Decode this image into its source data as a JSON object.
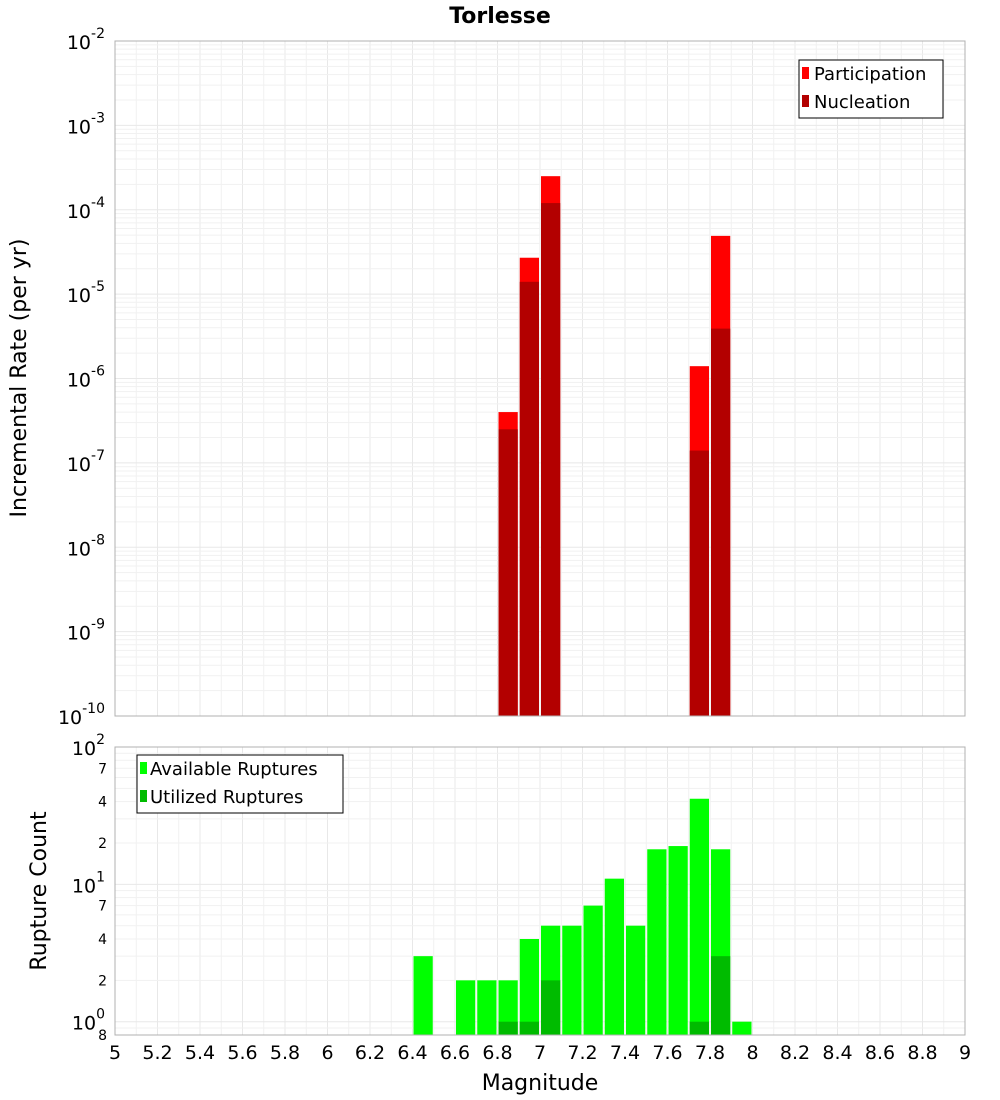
{
  "chart_data": [
    {
      "type": "bar",
      "title": "Torlesse",
      "ylabel": "Incremental Rate (per yr)",
      "xlabel": "",
      "yscale": "log",
      "ylim": [
        1e-10,
        0.01
      ],
      "xlim": [
        5,
        9
      ],
      "x": [
        6.85,
        6.95,
        7.05,
        7.75,
        7.85
      ],
      "series": [
        {
          "name": "Participation",
          "color": "#ff0000",
          "values": [
            4e-07,
            2.7e-05,
            0.00025,
            1.4e-06,
            4.9e-05
          ]
        },
        {
          "name": "Nucleation",
          "color": "#b30000",
          "values": [
            2.5e-07,
            1.4e-05,
            0.00012,
            1.4e-07,
            3.9e-06
          ]
        }
      ],
      "y_ticks": [
        {
          "base": "10",
          "exp": "-2",
          "value": 0.01
        },
        {
          "base": "10",
          "exp": "-3",
          "value": 0.001
        },
        {
          "base": "10",
          "exp": "-4",
          "value": 0.0001
        },
        {
          "base": "10",
          "exp": "-5",
          "value": 1e-05
        },
        {
          "base": "10",
          "exp": "-6",
          "value": 1e-06
        },
        {
          "base": "10",
          "exp": "-7",
          "value": 1e-07
        },
        {
          "base": "10",
          "exp": "-8",
          "value": 1e-08
        },
        {
          "base": "10",
          "exp": "-9",
          "value": 1e-09
        },
        {
          "base": "10",
          "exp": "-10",
          "value": 1e-10
        }
      ],
      "legend_position": "top-right"
    },
    {
      "type": "bar",
      "title": "",
      "ylabel": "Rupture Count",
      "xlabel": "Magnitude",
      "yscale": "log",
      "ylim": [
        0.8,
        100
      ],
      "xlim": [
        5,
        9
      ],
      "x": [
        6.45,
        6.65,
        6.75,
        6.85,
        6.95,
        7.05,
        7.15,
        7.25,
        7.35,
        7.45,
        7.55,
        7.65,
        7.75,
        7.85,
        7.95
      ],
      "series": [
        {
          "name": "Available Ruptures",
          "color": "#00ff00",
          "values": [
            3,
            2,
            2,
            2,
            4,
            5,
            5,
            7,
            11,
            5,
            18,
            19,
            42,
            18,
            1
          ]
        },
        {
          "name": "Utilized Ruptures",
          "color": "#00bb00",
          "values": [
            null,
            null,
            null,
            1,
            1,
            2,
            null,
            null,
            null,
            null,
            null,
            null,
            1,
            3,
            null
          ]
        }
      ],
      "y_ticks": [
        {
          "base": "10",
          "exp": "2",
          "value": 100
        },
        {
          "base": "10",
          "exp": "1",
          "value": 10
        },
        {
          "base": "10",
          "exp": "0",
          "value": 1
        }
      ],
      "y_minor_ticks": [
        {
          "label": "7",
          "value": 70
        },
        {
          "label": "4",
          "value": 40
        },
        {
          "label": "2",
          "value": 20
        },
        {
          "label": "7",
          "value": 7
        },
        {
          "label": "4",
          "value": 4
        },
        {
          "label": "2",
          "value": 2
        },
        {
          "label": "8",
          "value": 0.8
        }
      ],
      "x_ticks": [
        "5",
        "5.2",
        "5.4",
        "5.6",
        "5.8",
        "6",
        "6.2",
        "6.4",
        "6.6",
        "6.8",
        "7",
        "7.2",
        "7.4",
        "7.6",
        "7.8",
        "8",
        "8.2",
        "8.4",
        "8.6",
        "8.8",
        "9"
      ],
      "legend_position": "top-left"
    }
  ]
}
